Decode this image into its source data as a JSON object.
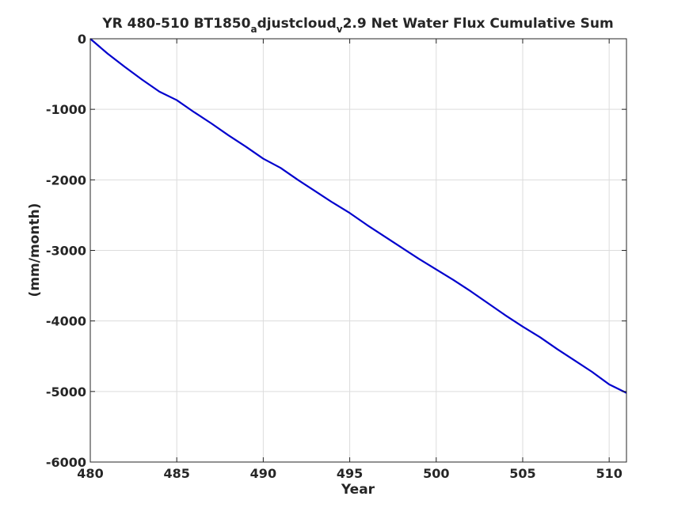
{
  "chart_data": {
    "type": "line",
    "title": {
      "prefix": "YR 480-510 BT1850",
      "sub1": "a",
      "mid": "djustcloud",
      "sub2": "v",
      "suffix": "2.9 Net Water Flux Cumulative Sum"
    },
    "xlabel": "Year",
    "ylabel": "(mm/month)",
    "xlim": [
      480,
      511
    ],
    "ylim": [
      -6000,
      0
    ],
    "xticks": [
      480,
      485,
      490,
      495,
      500,
      505,
      510
    ],
    "yticks": [
      0,
      -1000,
      -2000,
      -3000,
      -4000,
      -5000,
      -6000
    ],
    "grid": true,
    "line_color": "#0000cd",
    "series": [
      {
        "x": [
          480,
          481,
          482,
          483,
          484,
          485,
          486,
          487,
          488,
          489,
          490,
          491,
          492,
          493,
          494,
          495,
          496,
          497,
          498,
          499,
          500,
          501,
          502,
          503,
          504,
          505,
          506,
          507,
          508,
          509,
          510,
          511
        ],
        "values": [
          0,
          -210,
          -400,
          -580,
          -750,
          -870,
          -1040,
          -1200,
          -1370,
          -1530,
          -1700,
          -1830,
          -2000,
          -2160,
          -2320,
          -2470,
          -2640,
          -2800,
          -2960,
          -3120,
          -3270,
          -3420,
          -3580,
          -3750,
          -3920,
          -4080,
          -4230,
          -4400,
          -4560,
          -4720,
          -4900,
          -5020
        ]
      }
    ]
  }
}
